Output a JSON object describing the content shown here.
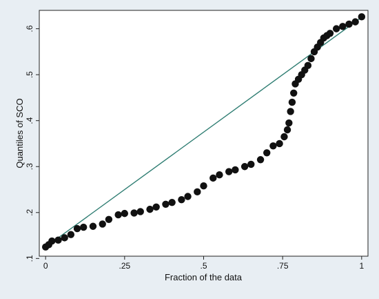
{
  "chart_data": {
    "type": "scatter",
    "title": "",
    "xlabel": "Fraction of the data",
    "ylabel": "Quantiles of SCO",
    "xlim": [
      -0.02,
      1.02
    ],
    "ylim": [
      0.105,
      0.64
    ],
    "x_ticks": [
      {
        "value": 0,
        "label": "0"
      },
      {
        "value": 0.25,
        "label": ".25"
      },
      {
        "value": 0.5,
        "label": ".5"
      },
      {
        "value": 0.75,
        "label": ".75"
      },
      {
        "value": 1,
        "label": "1"
      }
    ],
    "y_ticks": [
      {
        "value": 0.1,
        "label": ".1"
      },
      {
        "value": 0.2,
        "label": ".2"
      },
      {
        "value": 0.3,
        "label": ".3"
      },
      {
        "value": 0.4,
        "label": ".4"
      },
      {
        "value": 0.5,
        "label": ".5"
      },
      {
        "value": 0.6,
        "label": ".6"
      }
    ],
    "grid": false,
    "legend": "none",
    "colors": {
      "points": "#111111",
      "reference_line": "#2e7d72",
      "plot_bg": "#ffffff",
      "outer_bg": "#e8eef3"
    },
    "reference_line": {
      "from": [
        0,
        0.125
      ],
      "to": [
        1,
        0.625
      ]
    },
    "series": [
      {
        "x": [
          0.0,
          0.01,
          0.02,
          0.04,
          0.06,
          0.08,
          0.1,
          0.12,
          0.15,
          0.18,
          0.2,
          0.23,
          0.25,
          0.28,
          0.3,
          0.33,
          0.35,
          0.38,
          0.4,
          0.43,
          0.45,
          0.48,
          0.5,
          0.53,
          0.55,
          0.58,
          0.6,
          0.63,
          0.65,
          0.68,
          0.7,
          0.72,
          0.74,
          0.755,
          0.765,
          0.77,
          0.775,
          0.78,
          0.785,
          0.79,
          0.8,
          0.81,
          0.82,
          0.83,
          0.84,
          0.85,
          0.86,
          0.87,
          0.88,
          0.89,
          0.9,
          0.92,
          0.94,
          0.96,
          0.98,
          1.0
        ],
        "y": [
          0.125,
          0.13,
          0.138,
          0.14,
          0.145,
          0.152,
          0.165,
          0.168,
          0.17,
          0.175,
          0.185,
          0.195,
          0.198,
          0.199,
          0.202,
          0.207,
          0.212,
          0.218,
          0.222,
          0.228,
          0.235,
          0.245,
          0.258,
          0.275,
          0.282,
          0.289,
          0.293,
          0.3,
          0.305,
          0.315,
          0.33,
          0.345,
          0.35,
          0.365,
          0.38,
          0.395,
          0.42,
          0.44,
          0.46,
          0.48,
          0.49,
          0.5,
          0.51,
          0.52,
          0.535,
          0.55,
          0.56,
          0.57,
          0.58,
          0.585,
          0.59,
          0.6,
          0.605,
          0.61,
          0.615,
          0.626
        ]
      }
    ]
  }
}
